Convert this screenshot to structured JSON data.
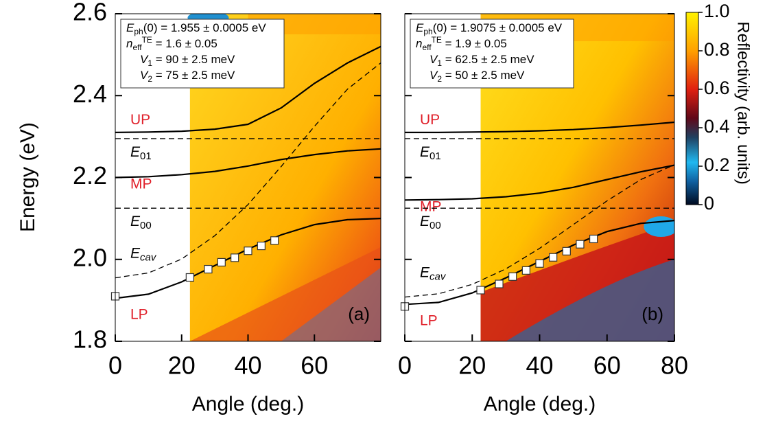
{
  "chart_data": [
    {
      "type": "line",
      "panel_label": "(a)",
      "ylabel": "Energy (eV)",
      "xlabel": "Angle (deg.)",
      "x": [
        0,
        10,
        20,
        30,
        40,
        50,
        60,
        70,
        80
      ],
      "xlim": [
        0,
        80
      ],
      "xticks": [
        0,
        20,
        40,
        60
      ],
      "ylim": [
        1.8,
        2.6
      ],
      "yticks": [
        1.8,
        {
          "value": 2,
          "label": "2.0"
        },
        2.2,
        2.4,
        2.6
      ],
      "ytick_labels": true,
      "measured_from": 22.5,
      "series": [
        {
          "name": "UP",
          "color": "#000000",
          "label_color": "#e0202a",
          "dashed": false,
          "values": [
            2.31,
            2.311,
            2.313,
            2.318,
            2.33,
            2.37,
            2.43,
            2.48,
            2.52
          ]
        },
        {
          "name": "E",
          "sub": "01",
          "color": "#000000",
          "label_color": "#000000",
          "dashed": true,
          "values": [
            2.295,
            2.295,
            2.295,
            2.295,
            2.295,
            2.295,
            2.295,
            2.295,
            2.295
          ]
        },
        {
          "name": "MP",
          "color": "#000000",
          "label_color": "#e0202a",
          "dashed": false,
          "values": [
            2.2,
            2.202,
            2.207,
            2.215,
            2.228,
            2.244,
            2.256,
            2.265,
            2.27
          ]
        },
        {
          "name": "E",
          "sub": "00",
          "color": "#000000",
          "label_color": "#000000",
          "dashed": true,
          "values": [
            2.125,
            2.125,
            2.125,
            2.125,
            2.125,
            2.125,
            2.125,
            2.125,
            2.125
          ]
        },
        {
          "name": "LP",
          "color": "#000000",
          "label_color": "#e0202a",
          "dashed": false,
          "values": [
            1.905,
            1.915,
            1.945,
            1.985,
            2.025,
            2.06,
            2.085,
            2.097,
            2.1
          ]
        },
        {
          "name": "E",
          "sub": "cav",
          "color": "#000000",
          "label_color": "#000000",
          "dashed": true,
          "values": [
            1.955,
            1.967,
            2.001,
            2.058,
            2.134,
            2.227,
            2.325,
            2.416,
            2.48
          ]
        }
      ],
      "points": {
        "x": [
          0,
          22.5,
          28,
          32,
          36,
          40,
          44,
          48
        ],
        "values": [
          1.91,
          1.956,
          1.976,
          1.993,
          2.004,
          2.021,
          2.033,
          2.046
        ]
      },
      "annotation": [
        [
          {
            "t": "E",
            "s": "i"
          },
          {
            "t": "ph",
            "s": "sub"
          },
          {
            "t": "(0) = 1.955 ± 0.0005 eV"
          }
        ],
        [
          {
            "t": "n",
            "s": "i"
          },
          {
            "t": "eff",
            "s": "sub"
          },
          {
            "t": "TE",
            "s": "sup"
          },
          {
            "t": " = 1.6 ± 0.05"
          }
        ],
        [
          {
            "t": "V",
            "s": "i"
          },
          {
            "t": "1",
            "s": "sub"
          },
          {
            "t": " = 90 ± 2.5 meV"
          }
        ],
        [
          {
            "t": "V",
            "s": "i"
          },
          {
            "t": "2",
            "s": "sub"
          },
          {
            "t": " = 75 ± 2.5 meV"
          }
        ]
      ]
    },
    {
      "type": "line",
      "panel_label": "(b)",
      "xlabel": "Angle (deg.)",
      "x": [
        0,
        10,
        20,
        30,
        40,
        50,
        60,
        70,
        80
      ],
      "xlim": [
        0,
        80
      ],
      "xticks": [
        0,
        20,
        40,
        60,
        80
      ],
      "ylim": [
        1.8,
        2.6
      ],
      "yticks": [
        1.8,
        2,
        2.2,
        2.4,
        2.6
      ],
      "ytick_labels": false,
      "measured_from": 22.5,
      "series": [
        {
          "name": "UP",
          "color": "#000000",
          "label_color": "#e0202a",
          "dashed": false,
          "values": [
            2.31,
            2.31,
            2.311,
            2.312,
            2.314,
            2.317,
            2.322,
            2.328,
            2.335
          ]
        },
        {
          "name": "E",
          "sub": "01",
          "color": "#000000",
          "label_color": "#000000",
          "dashed": true,
          "values": [
            2.295,
            2.295,
            2.295,
            2.295,
            2.295,
            2.295,
            2.295,
            2.295,
            2.295
          ]
        },
        {
          "name": "MP",
          "color": "#000000",
          "label_color": "#e0202a",
          "dashed": false,
          "values": [
            2.145,
            2.146,
            2.148,
            2.153,
            2.162,
            2.176,
            2.195,
            2.214,
            2.23
          ]
        },
        {
          "name": "E",
          "sub": "00",
          "color": "#000000",
          "label_color": "#000000",
          "dashed": true,
          "values": [
            2.125,
            2.125,
            2.125,
            2.125,
            2.125,
            2.125,
            2.125,
            2.125,
            2.125
          ]
        },
        {
          "name": "LP",
          "color": "#000000",
          "label_color": "#e0202a",
          "dashed": false,
          "values": [
            1.89,
            1.895,
            1.918,
            1.955,
            1.995,
            2.035,
            2.068,
            2.088,
            2.095
          ]
        },
        {
          "name": "E",
          "sub": "cav",
          "color": "#000000",
          "label_color": "#000000",
          "dashed": true,
          "values": [
            1.908,
            1.916,
            1.939,
            1.977,
            2.027,
            2.085,
            2.143,
            2.195,
            2.231
          ]
        }
      ],
      "points": {
        "x": [
          0,
          22.5,
          28,
          32,
          36,
          40,
          44,
          48,
          52,
          56
        ],
        "values": [
          1.885,
          1.925,
          1.94,
          1.958,
          1.973,
          1.99,
          2.005,
          2.02,
          2.037,
          2.05
        ]
      },
      "annotation": [
        [
          {
            "t": "E",
            "s": "i"
          },
          {
            "t": "ph",
            "s": "sub"
          },
          {
            "t": "(0) = 1.9075 ± 0.0005 eV"
          }
        ],
        [
          {
            "t": "n",
            "s": "i"
          },
          {
            "t": "eff",
            "s": "sub"
          },
          {
            "t": "TE",
            "s": "sup"
          },
          {
            "t": " = 1.9 ± 0.05"
          }
        ],
        [
          {
            "t": "V",
            "s": "i"
          },
          {
            "t": "1",
            "s": "sub"
          },
          {
            "t": " = 62.5 ± 2.5 meV"
          }
        ],
        [
          {
            "t": "V",
            "s": "i"
          },
          {
            "t": "2",
            "s": "sub"
          },
          {
            "t": " = 50 ± 2.5 meV"
          }
        ]
      ],
      "colorbar": {
        "label": "Reflectivity (arb. units)",
        "lim": [
          0,
          1
        ],
        "ticks": [
          0,
          {
            "value": 0.2,
            "label": "0.2"
          },
          {
            "value": 0.4,
            "label": "0.4"
          },
          {
            "value": 0.6,
            "label": "0.6"
          },
          {
            "value": 0.8,
            "label": "0.8"
          },
          {
            "value": 1,
            "label": "1.0"
          }
        ]
      }
    }
  ]
}
